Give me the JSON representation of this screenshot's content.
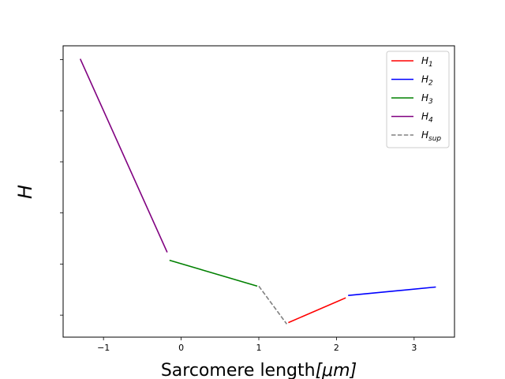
{
  "chart_data": {
    "type": "line",
    "xlabel_text": "Sarcomere length",
    "xlabel_unit": "[μm]",
    "ylabel": "H",
    "xlim": [
      -1.52,
      3.52
    ],
    "ylim": [
      0,
      1
    ],
    "x_ticks": [
      -1,
      0,
      1,
      2,
      3
    ],
    "x_tick_labels": [
      "−1",
      "0",
      "1",
      "2",
      "3"
    ],
    "y_tick_count": 6,
    "y_tick_labels_visible": false,
    "grid": false,
    "legend_placement": "top-right",
    "series": [
      {
        "key": "H1",
        "name": "H",
        "sub": "1",
        "color": "#ff0000",
        "dash": "solid",
        "points": [
          [
            1.38,
            0.05
          ],
          [
            2.12,
            0.135
          ]
        ]
      },
      {
        "key": "H2",
        "name": "H",
        "sub": "2",
        "color": "#0000ff",
        "dash": "solid",
        "points": [
          [
            2.15,
            0.143
          ],
          [
            3.28,
            0.172
          ]
        ]
      },
      {
        "key": "H3",
        "name": "H",
        "sub": "3",
        "color": "#008000",
        "dash": "solid",
        "points": [
          [
            -0.15,
            0.264
          ],
          [
            0.98,
            0.175
          ]
        ]
      },
      {
        "key": "H4",
        "name": "H",
        "sub": "4",
        "color": "#800080",
        "dash": "solid",
        "points": [
          [
            -1.3,
            0.955
          ],
          [
            -0.18,
            0.291
          ]
        ]
      },
      {
        "key": "Hsup",
        "name": "H",
        "sub": "sup",
        "color": "#808080",
        "dash": "dashed",
        "points": [
          [
            1.0,
            0.175
          ],
          [
            1.36,
            0.045
          ]
        ]
      }
    ]
  }
}
